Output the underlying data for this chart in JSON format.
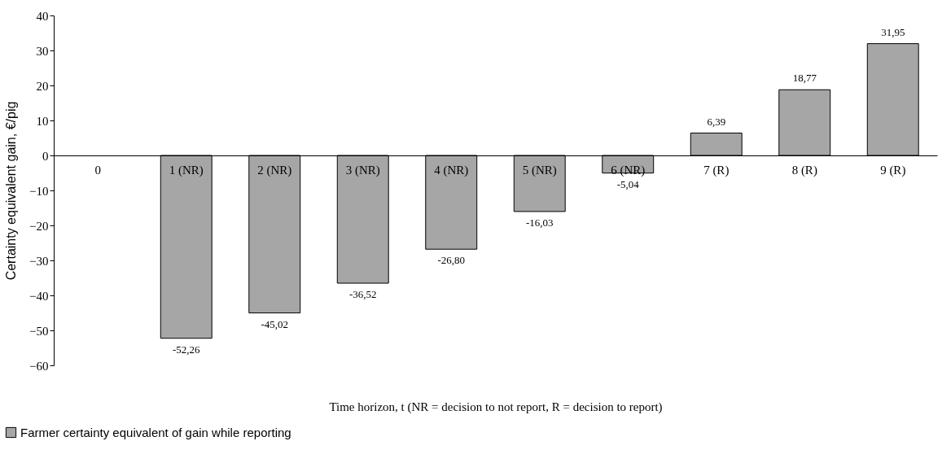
{
  "chart_data": {
    "type": "bar",
    "xlabel": "Time horizon, t (NR =  decision to not report, R = decision to report)",
    "ylabel": "Certainty equivalent gain,  €/pig",
    "categories": [
      "0",
      "1 (NR)",
      "2 (NR)",
      "3 (NR)",
      "4 (NR)",
      "5 (NR)",
      "6 (NR)",
      "7 (R)",
      "8 (R)",
      "9 (R)"
    ],
    "series": [
      {
        "name": "Farmer certainty equivalent of gain while reporting",
        "color": "#a6a6a6",
        "values": [
          null,
          -52.26,
          -45.02,
          -36.52,
          -26.8,
          -16.03,
          -5.04,
          6.39,
          18.77,
          31.95
        ],
        "value_labels": [
          null,
          "-52,26",
          "-45,02",
          "-36,52",
          "-26,80",
          "-16,03",
          "-5,04",
          "6,39",
          "18,77",
          "31,95"
        ]
      }
    ],
    "ylim": [
      -60,
      40
    ],
    "yticks": [
      -60,
      -50,
      -40,
      -30,
      -20,
      -10,
      0,
      10,
      20,
      30,
      40
    ],
    "grid": false,
    "legend": "bottom left"
  }
}
